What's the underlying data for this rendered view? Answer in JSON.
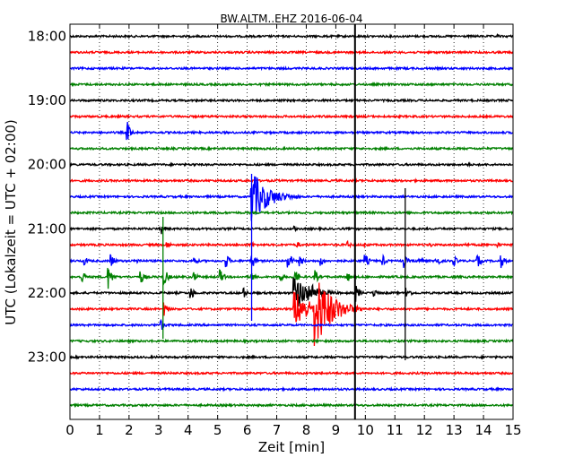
{
  "chart_data": {
    "type": "line",
    "title": "BW.ALTM..EHZ 2016-06-04",
    "xlabel": "Zeit  [min]",
    "ylabel": "UTC (Lokalzeit = UTC + 02:00)",
    "xlim": [
      0,
      15
    ],
    "x_ticks": [
      "0",
      "1",
      "2",
      "3",
      "4",
      "5",
      "6",
      "7",
      "8",
      "9",
      "10",
      "11",
      "12",
      "13",
      "14",
      "15"
    ],
    "y_ticks": [
      "18:00",
      "19:00",
      "20:00",
      "21:00",
      "22:00",
      "23:00"
    ],
    "grid": true,
    "trace_interval_min": 15,
    "first_trace": "18:00",
    "trace_colors": [
      "#000000",
      "#ff0000",
      "#0000ff",
      "#008000"
    ],
    "series": [
      {
        "start": "18:00",
        "events": [
          [
            14.5,
            2
          ]
        ]
      },
      {
        "start": "18:15",
        "events": []
      },
      {
        "start": "18:30",
        "events": []
      },
      {
        "start": "18:45",
        "events": []
      },
      {
        "start": "19:00",
        "events": []
      },
      {
        "start": "19:15",
        "events": [
          [
            8.6,
            1.5
          ]
        ]
      },
      {
        "start": "19:30",
        "events": [
          [
            1.95,
            12
          ]
        ]
      },
      {
        "start": "19:45",
        "events": []
      },
      {
        "start": "20:00",
        "events": [
          [
            4.2,
            2
          ],
          [
            13.5,
            2
          ]
        ]
      },
      {
        "start": "20:15",
        "events": [
          [
            7.0,
            1.5
          ]
        ]
      },
      {
        "start": "20:30",
        "events": [
          [
            6.15,
            30
          ]
        ]
      },
      {
        "start": "20:45",
        "events": []
      },
      {
        "start": "21:00",
        "events": [
          [
            3.1,
            6
          ],
          [
            7.6,
            3
          ]
        ]
      },
      {
        "start": "21:15",
        "events": [
          [
            3.3,
            4
          ],
          [
            6.15,
            4
          ],
          [
            7.7,
            4
          ],
          [
            9.4,
            4
          ],
          [
            10.0,
            3
          ],
          [
            12.2,
            3
          ],
          [
            13.4,
            3
          ],
          [
            14.5,
            3
          ]
        ]
      },
      {
        "start": "21:30",
        "events": [
          [
            0.5,
            6
          ],
          [
            1.4,
            8
          ],
          [
            2.3,
            4
          ],
          [
            4.2,
            6
          ],
          [
            5.3,
            8
          ],
          [
            6.15,
            10
          ],
          [
            7.4,
            10
          ],
          [
            7.8,
            6
          ],
          [
            8.5,
            6
          ],
          [
            10.0,
            8
          ],
          [
            10.6,
            6
          ],
          [
            11.3,
            8
          ],
          [
            11.8,
            6
          ],
          [
            12.4,
            8
          ],
          [
            13.0,
            6
          ],
          [
            13.8,
            8
          ],
          [
            14.6,
            8
          ]
        ]
      },
      {
        "start": "21:45",
        "events": [
          [
            0.4,
            8
          ],
          [
            1.3,
            14
          ],
          [
            2.4,
            8
          ],
          [
            3.2,
            10
          ],
          [
            4.2,
            6
          ],
          [
            5.1,
            8
          ],
          [
            6.15,
            6
          ],
          [
            7.1,
            6
          ],
          [
            7.6,
            10
          ],
          [
            8.3,
            8
          ],
          [
            9.4,
            6
          ]
        ]
      },
      {
        "start": "22:00",
        "events": [
          [
            4.1,
            8
          ],
          [
            5.9,
            6
          ],
          [
            7.6,
            20
          ],
          [
            8.2,
            14
          ],
          [
            9.7,
            10
          ],
          [
            10.3,
            6
          ],
          [
            11.4,
            8
          ]
        ]
      },
      {
        "start": "22:15",
        "events": [
          [
            3.2,
            8
          ],
          [
            7.6,
            22
          ],
          [
            8.3,
            45
          ],
          [
            9.2,
            8
          ]
        ]
      },
      {
        "start": "22:30",
        "events": [
          [
            3.1,
            6
          ]
        ]
      },
      {
        "start": "22:45",
        "events": []
      },
      {
        "start": "23:00",
        "events": []
      },
      {
        "start": "23:15",
        "events": []
      },
      {
        "start": "23:30",
        "events": []
      },
      {
        "start": "23:45",
        "events": []
      }
    ]
  }
}
